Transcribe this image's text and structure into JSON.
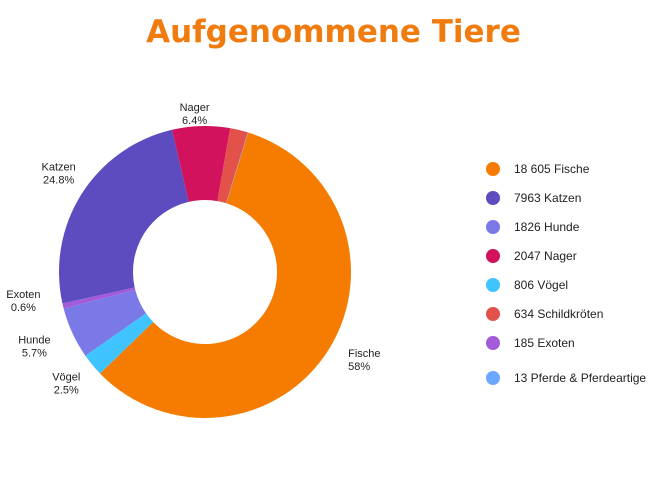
{
  "colors": {
    "title": "#f07b0f"
  },
  "chart_data": {
    "type": "pie",
    "title": "Aufgenommene Tiere",
    "donut": true,
    "slices": [
      {
        "name": "Fische",
        "value": 18605,
        "percent": "58%",
        "legend": "18 605 Fische",
        "color": "#f57c00"
      },
      {
        "name": "Vögel",
        "value": 806,
        "percent": "2.5%",
        "legend": "806 Vögel",
        "color": "#40c4ff"
      },
      {
        "name": "Hunde",
        "value": 1826,
        "percent": "5.7%",
        "legend": "1826 Hunde",
        "color": "#7b79e8"
      },
      {
        "name": "Exoten",
        "value": 185,
        "percent": "0.6%",
        "legend": "185 Exoten",
        "color": "#a25bd9"
      },
      {
        "name": "Katzen",
        "value": 7963,
        "percent": "24.8%",
        "legend": "7963 Katzen",
        "color": "#5c4cbf"
      },
      {
        "name": "Nager",
        "value": 2047,
        "percent": "6.4%",
        "legend": "2047 Nager",
        "color": "#d3125e"
      },
      {
        "name": "Schildkröten",
        "value": 634,
        "percent": "",
        "legend": "634 Schildkröten",
        "color": "#e2524a"
      },
      {
        "name": "Pferde & Pferdeartige",
        "value": 13,
        "percent": "",
        "legend": "13 Pferde & Pferdeartige",
        "color": "#6aa7ff"
      }
    ],
    "legend_order": [
      "Fische",
      "Katzen",
      "Hunde",
      "Nager",
      "Vögel",
      "Schildkröten",
      "Exoten",
      "Pferde & Pferdeartige"
    ],
    "legend_position": "right"
  }
}
